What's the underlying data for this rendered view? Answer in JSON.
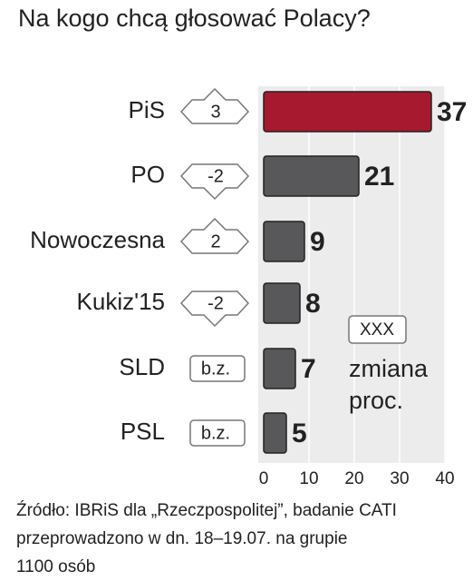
{
  "chart_data": {
    "type": "bar",
    "orientation": "horizontal",
    "title": "Na kogo chcą głosować Polacy?",
    "categories": [
      "PiS",
      "PO",
      "Nowoczesna",
      "Kukiz'15",
      "SLD",
      "PSL"
    ],
    "values": [
      37,
      21,
      9,
      8,
      7,
      5
    ],
    "colors": [
      "#a6192e",
      "#58585a",
      "#58585a",
      "#58585a",
      "#58585a",
      "#58585a"
    ],
    "changes": [
      3,
      -2,
      2,
      -2,
      "b.z.",
      "b.z."
    ],
    "legend": {
      "sample": "XXX",
      "label": [
        "zmiana",
        "proc."
      ]
    },
    "xlim": [
      0,
      40
    ],
    "xticks": [
      0,
      10,
      20,
      30,
      40
    ],
    "grid": true,
    "source": [
      "Źródło: IBRiS dla „Rzeczpospolitej”, badanie CATI",
      "przeprowadzono w dn. 18–19.07. na grupie",
      "1100 osób"
    ]
  }
}
